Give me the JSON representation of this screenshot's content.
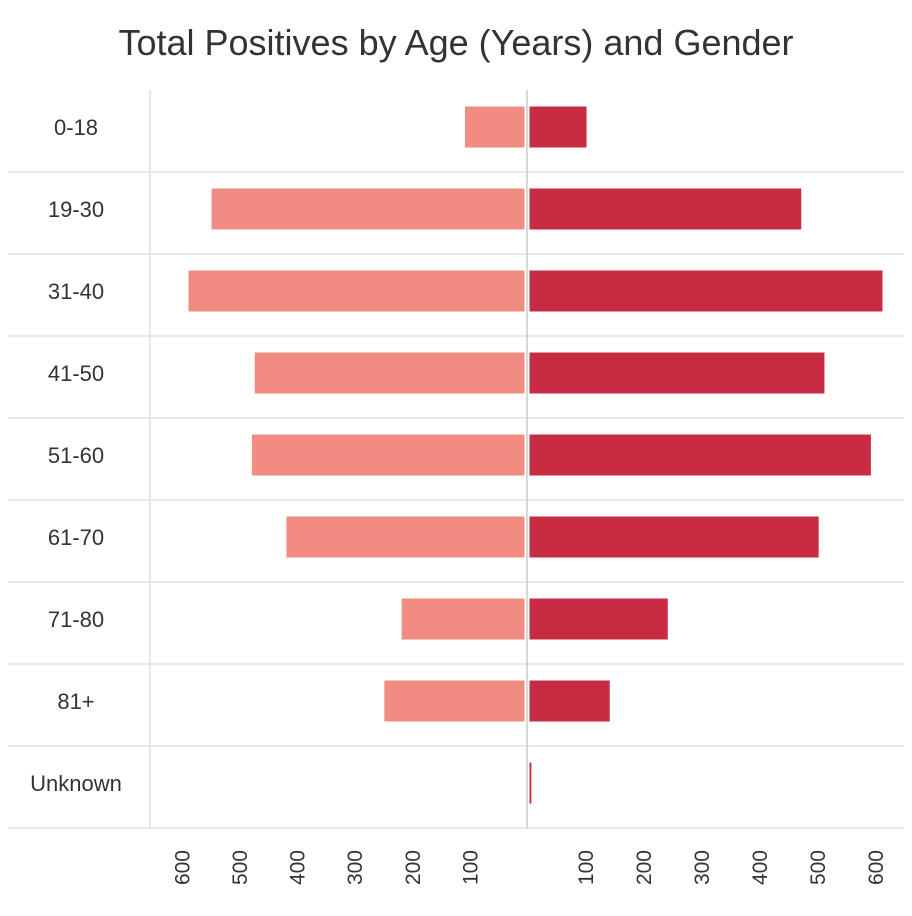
{
  "chart_data": {
    "type": "bar",
    "orientation": "horizontal-diverging",
    "title": "Total Positives by Age (Years) and Gender",
    "categories": [
      "0-18",
      "19-30",
      "31-40",
      "41-50",
      "51-60",
      "61-70",
      "71-80",
      "81+",
      "Unknown"
    ],
    "series": [
      {
        "side": "left",
        "color": "#f28b82",
        "values": [
          105,
          545,
          585,
          470,
          475,
          415,
          215,
          245,
          0
        ]
      },
      {
        "side": "right",
        "color": "#c72c42",
        "values": [
          100,
          470,
          610,
          510,
          590,
          500,
          240,
          140,
          5
        ]
      }
    ],
    "left_axis": {
      "ticks": [
        600,
        500,
        400,
        300,
        200,
        100
      ]
    },
    "right_axis": {
      "ticks": [
        100,
        200,
        300,
        400,
        500,
        600
      ]
    },
    "xlim": [
      -650,
      620
    ],
    "grid": true,
    "legend": "none"
  }
}
